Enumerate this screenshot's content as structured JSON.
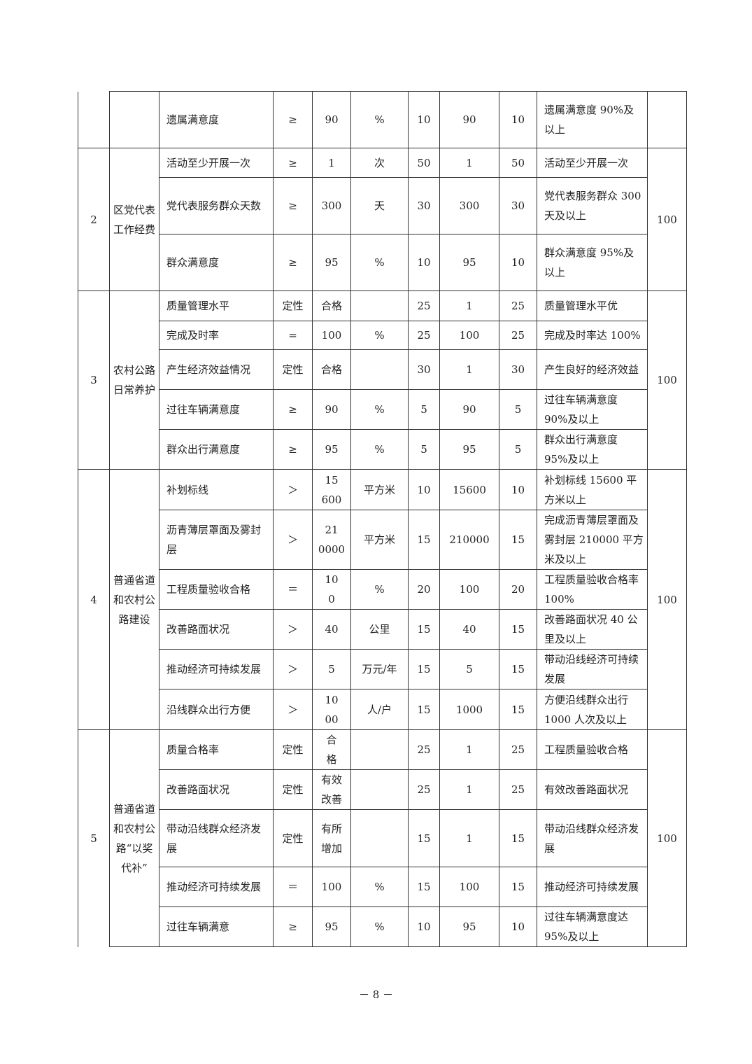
{
  "groups": [
    {
      "no": "",
      "name": "",
      "score": "",
      "items": [
        [
          "遗属满意度",
          "≥",
          "90",
          "%",
          "10",
          "90",
          "10",
          "遗属满意度 90%及以上"
        ]
      ]
    },
    {
      "no": "2",
      "name": "区党代表工作经费",
      "score": "100",
      "items": [
        [
          "活动至少开展一次",
          "≥",
          "1",
          "次",
          "50",
          "1",
          "50",
          "活动至少开展一次"
        ],
        [
          "党代表服务群众天数",
          "≥",
          "300",
          "天",
          "30",
          "300",
          "30",
          "党代表服务群众 300 天及以上"
        ],
        [
          "群众满意度",
          "≥",
          "95",
          "%",
          "10",
          "95",
          "10",
          "群众满意度 95%及以上"
        ]
      ]
    },
    {
      "no": "3",
      "name": "农村公路日常养护",
      "score": "100",
      "items": [
        [
          "质量管理水平",
          "定性",
          "合格",
          "",
          "25",
          "1",
          "25",
          "质量管理水平优"
        ],
        [
          "完成及时率",
          "=",
          "100",
          "%",
          "25",
          "100",
          "25",
          "完成及时率达 100%"
        ],
        [
          "产生经济效益情况",
          "定性",
          "合格",
          "",
          "30",
          "1",
          "30",
          "产生良好的经济效益"
        ],
        [
          "过往车辆满意度",
          "≥",
          "90",
          "%",
          "5",
          "90",
          "5",
          "过往车辆满意度 90%及以上"
        ],
        [
          "群众出行满意度",
          "≥",
          "95",
          "%",
          "5",
          "95",
          "5",
          "群众出行满意度 95%及以上"
        ]
      ]
    },
    {
      "no": "4",
      "name": "普通省道和农村公路建设",
      "score": "100",
      "items": [
        [
          "补划标线",
          "＞",
          "15\n600",
          "平方米",
          "10",
          "15600",
          "10",
          "补划标线 15600 平方米以上"
        ],
        [
          "沥青薄层罩面及雾封层",
          "＞",
          "21\n0000",
          "平方米",
          "15",
          "210000",
          "15",
          "完成沥青薄层罩面及雾封层 210000 平方米及以上"
        ],
        [
          "工程质量验收合格",
          "＝",
          "10\n0",
          "%",
          "20",
          "100",
          "20",
          "工程质量验收合格率 100%"
        ],
        [
          "改善路面状况",
          "＞",
          "40",
          "公里",
          "15",
          "40",
          "15",
          "改善路面状况 40 公里及以上"
        ],
        [
          "推动经济可持续发展",
          "＞",
          "5",
          "万元/年",
          "15",
          "5",
          "15",
          "带动沿线经济可持续发展"
        ],
        [
          "沿线群众出行方便",
          "＞",
          "10\n00",
          "人/户",
          "15",
          "1000",
          "15",
          "方便沿线群众出行 1000 人次及以上"
        ]
      ]
    },
    {
      "no": "5",
      "name": "普通省道和农村公路“以奖代补”",
      "score": "100",
      "items": [
        [
          "质量合格率",
          "定性",
          "合\n格",
          "",
          "25",
          "1",
          "25",
          "工程质量验收合格"
        ],
        [
          "改善路面状况",
          "定性",
          "有效\n改善",
          "",
          "25",
          "1",
          "25",
          "有效改善路面状况"
        ],
        [
          "带动沿线群众经济发展",
          "定性",
          "有所\n增加",
          "",
          "15",
          "1",
          "15",
          "带动沿线群众经济发展"
        ],
        [
          "推动经济可持续发展",
          "＝",
          "100",
          "%",
          "15",
          "100",
          "15",
          "推动经济可持续发展"
        ],
        [
          "过往车辆满意",
          "≥",
          "95",
          "%",
          "10",
          "95",
          "10",
          "过往车辆满意度达 95%及以上"
        ]
      ]
    }
  ],
  "page_number": "－ 8 －"
}
